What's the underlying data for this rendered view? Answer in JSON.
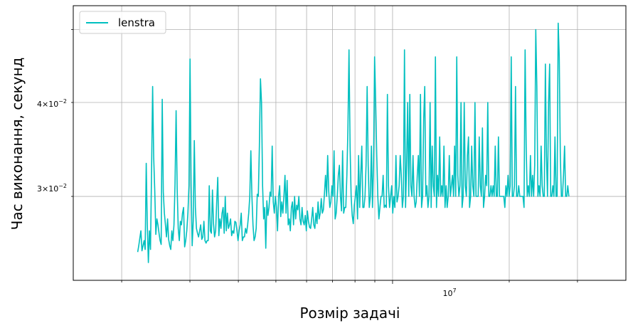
{
  "chart_data": {
    "type": "line",
    "title": "",
    "xlabel": "Розмір задачі",
    "ylabel": "Час виконання, секунд",
    "xscale": "log",
    "yscale": "log",
    "xlim": [
      1500000,
      40000000
    ],
    "ylim": [
      0.0232,
      0.0538
    ],
    "grid": "both (major + minor)",
    "legend": "upper-left",
    "x_tick_labels": [
      {
        "value": 10000000,
        "label": "10^7"
      }
    ],
    "y_tick_labels": [
      {
        "value": 0.03,
        "label": "3×10^-2"
      },
      {
        "value": 0.04,
        "label": "4×10^-2"
      }
    ],
    "series": [
      {
        "name": "lenstra",
        "color": "#00bfbf",
        "x_range": [
          2200000,
          28500000
        ],
        "note": "values sampled along x (geometric spacing between x_range endpoints)",
        "values": [
          0.0253,
          0.0258,
          0.0264,
          0.027,
          0.0254,
          0.0258,
          0.0262,
          0.0255,
          0.0332,
          0.0275,
          0.0245,
          0.027,
          0.0255,
          0.0325,
          0.042,
          0.0338,
          0.0305,
          0.0267,
          0.028,
          0.0275,
          0.0268,
          0.0262,
          0.0259,
          0.0404,
          0.0304,
          0.0285,
          0.0275,
          0.0265,
          0.028,
          0.0263,
          0.0258,
          0.0255,
          0.027,
          0.0262,
          0.0275,
          0.0312,
          0.039,
          0.0307,
          0.0272,
          0.0262,
          0.0278,
          0.0275,
          0.0285,
          0.029,
          0.0257,
          0.0262,
          0.027,
          0.0285,
          0.031,
          0.0457,
          0.031,
          0.0258,
          0.0278,
          0.0356,
          0.029,
          0.0272,
          0.0268,
          0.0265,
          0.027,
          0.0275,
          0.0263,
          0.0265,
          0.0278,
          0.0262,
          0.026,
          0.0262,
          0.0262,
          0.031,
          0.027,
          0.0268,
          0.0306,
          0.0276,
          0.0265,
          0.027,
          0.0295,
          0.0318,
          0.0266,
          0.028,
          0.0272,
          0.0285,
          0.029,
          0.0268,
          0.03,
          0.027,
          0.0285,
          0.0272,
          0.0275,
          0.028,
          0.0266,
          0.027,
          0.0268,
          0.0278,
          0.0277,
          0.027,
          0.0262,
          0.027,
          0.0275,
          0.0285,
          0.0262,
          0.0265,
          0.0265,
          0.0272,
          0.0268,
          0.0275,
          0.0285,
          0.03,
          0.0345,
          0.03,
          0.0275,
          0.0262,
          0.0265,
          0.0272,
          0.0302,
          0.03,
          0.035,
          0.043,
          0.04,
          0.031,
          0.028,
          0.029,
          0.0256,
          0.0296,
          0.0283,
          0.029,
          0.0304,
          0.03,
          0.035,
          0.0295,
          0.0285,
          0.03,
          0.029,
          0.027,
          0.03,
          0.031,
          0.0282,
          0.0295,
          0.0285,
          0.03,
          0.032,
          0.0285,
          0.0315,
          0.0275,
          0.028,
          0.027,
          0.029,
          0.0295,
          0.0275,
          0.03,
          0.028,
          0.0292,
          0.0288,
          0.03,
          0.028,
          0.0275,
          0.029,
          0.0278,
          0.0275,
          0.0283,
          0.027,
          0.0287,
          0.0278,
          0.0273,
          0.0272,
          0.028,
          0.029,
          0.0275,
          0.0272,
          0.0285,
          0.0276,
          0.0295,
          0.028,
          0.0285,
          0.0298,
          0.0285,
          0.0288,
          0.0303,
          0.032,
          0.03,
          0.034,
          0.0305,
          0.029,
          0.0295,
          0.031,
          0.03,
          0.0345,
          0.028,
          0.0285,
          0.03,
          0.032,
          0.033,
          0.03,
          0.0287,
          0.0345,
          0.0285,
          0.029,
          0.029,
          0.032,
          0.037,
          0.047,
          0.035,
          0.03,
          0.0283,
          0.0276,
          0.0292,
          0.03,
          0.031,
          0.028,
          0.034,
          0.029,
          0.032,
          0.035,
          0.029,
          0.029,
          0.03,
          0.033,
          0.042,
          0.033,
          0.029,
          0.03,
          0.035,
          0.029,
          0.033,
          0.046,
          0.04,
          0.034,
          0.03,
          0.028,
          0.029,
          0.03,
          0.03,
          0.032,
          0.029,
          0.0292,
          0.029,
          0.041,
          0.031,
          0.029,
          0.03,
          0.031,
          0.0285,
          0.03,
          0.029,
          0.034,
          0.0295,
          0.03,
          0.031,
          0.034,
          0.032,
          0.029,
          0.03,
          0.047,
          0.029,
          0.033,
          0.04,
          0.03,
          0.041,
          0.031,
          0.03,
          0.034,
          0.03,
          0.029,
          0.0295,
          0.032,
          0.034,
          0.03,
          0.041,
          0.029,
          0.03,
          0.038,
          0.042,
          0.03,
          0.031,
          0.029,
          0.03,
          0.04,
          0.029,
          0.035,
          0.031,
          0.03,
          0.046,
          0.029,
          0.032,
          0.03,
          0.036,
          0.03,
          0.031,
          0.03,
          0.035,
          0.029,
          0.031,
          0.029,
          0.03,
          0.034,
          0.03,
          0.031,
          0.032,
          0.03,
          0.035,
          0.03,
          0.046,
          0.032,
          0.03,
          0.031,
          0.04,
          0.029,
          0.03,
          0.04,
          0.031,
          0.03,
          0.034,
          0.036,
          0.029,
          0.03,
          0.035,
          0.031,
          0.03,
          0.04,
          0.03,
          0.03,
          0.03,
          0.036,
          0.031,
          0.03,
          0.037,
          0.029,
          0.03,
          0.032,
          0.031,
          0.04,
          0.03,
          0.03,
          0.031,
          0.03,
          0.031,
          0.03,
          0.035,
          0.03,
          0.03,
          0.036,
          0.03,
          0.03,
          0.03,
          0.03,
          0.03,
          0.029,
          0.031,
          0.03,
          0.032,
          0.03,
          0.031,
          0.046,
          0.03,
          0.03,
          0.031,
          0.042,
          0.03,
          0.03,
          0.031,
          0.03,
          0.03,
          0.03,
          0.03,
          0.029,
          0.047,
          0.035,
          0.03,
          0.031,
          0.03,
          0.034,
          0.03,
          0.032,
          0.03,
          0.033,
          0.05,
          0.042,
          0.03,
          0.031,
          0.03,
          0.035,
          0.031,
          0.03,
          0.03,
          0.045,
          0.034,
          0.03,
          0.04,
          0.045,
          0.03,
          0.03,
          0.031,
          0.03,
          0.036,
          0.03,
          0.03,
          0.051,
          0.046,
          0.034,
          0.03,
          0.03,
          0.032,
          0.035,
          0.03,
          0.03,
          0.031,
          0.03
        ]
      }
    ]
  }
}
